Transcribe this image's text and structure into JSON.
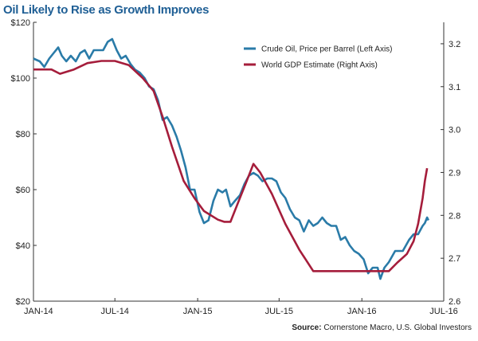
{
  "title": "Oil Likely to Rise as Growth Improves",
  "source_label": "Source:",
  "source_text": "Cornerstone Macro, U.S. Global Investors",
  "chart_data": {
    "type": "line",
    "title": "Oil Likely to Rise as Growth Improves",
    "x_ticks": [
      "JAN-14",
      "JUL-14",
      "JAN-15",
      "JUL-15",
      "JAN-16",
      "JUL-16"
    ],
    "x_range": [
      "2014-01-01",
      "2016-07-01"
    ],
    "y_left": {
      "range": [
        20,
        120
      ],
      "ticks": [
        "$20",
        "$40",
        "$60",
        "$80",
        "$100",
        "$120"
      ]
    },
    "y_right": {
      "range": [
        2.6,
        3.25
      ],
      "ticks": [
        "2.6",
        "2.7",
        "2.8",
        "2.9",
        "3.0",
        "3.1",
        "3.2"
      ]
    },
    "legend_position": "top-right",
    "series": [
      {
        "name": "Crude Oil, Price per Barrel (Left Axis)",
        "axis": "left",
        "color": "#2a7ba8",
        "points": [
          [
            "2014-01-01",
            107
          ],
          [
            "2014-01-15",
            106
          ],
          [
            "2014-01-25",
            104
          ],
          [
            "2014-02-05",
            107
          ],
          [
            "2014-02-15",
            109
          ],
          [
            "2014-02-25",
            111
          ],
          [
            "2014-03-05",
            108
          ],
          [
            "2014-03-15",
            106
          ],
          [
            "2014-03-25",
            108
          ],
          [
            "2014-04-05",
            106
          ],
          [
            "2014-04-15",
            109
          ],
          [
            "2014-04-25",
            110
          ],
          [
            "2014-05-05",
            107
          ],
          [
            "2014-05-15",
            110
          ],
          [
            "2014-05-25",
            110
          ],
          [
            "2014-06-05",
            110
          ],
          [
            "2014-06-15",
            113
          ],
          [
            "2014-06-25",
            114
          ],
          [
            "2014-07-05",
            110
          ],
          [
            "2014-07-15",
            107
          ],
          [
            "2014-07-25",
            108
          ],
          [
            "2014-08-05",
            105
          ],
          [
            "2014-08-15",
            103
          ],
          [
            "2014-08-25",
            102
          ],
          [
            "2014-09-05",
            100
          ],
          [
            "2014-09-15",
            97
          ],
          [
            "2014-09-25",
            96
          ],
          [
            "2014-10-05",
            92
          ],
          [
            "2014-10-15",
            85
          ],
          [
            "2014-10-25",
            86
          ],
          [
            "2014-11-05",
            83
          ],
          [
            "2014-11-15",
            79
          ],
          [
            "2014-11-25",
            74
          ],
          [
            "2014-12-05",
            68
          ],
          [
            "2014-12-15",
            60
          ],
          [
            "2014-12-25",
            60
          ],
          [
            "2015-01-05",
            52
          ],
          [
            "2015-01-15",
            48
          ],
          [
            "2015-01-25",
            49
          ],
          [
            "2015-02-05",
            56
          ],
          [
            "2015-02-15",
            60
          ],
          [
            "2015-02-25",
            59
          ],
          [
            "2015-03-05",
            60
          ],
          [
            "2015-03-15",
            54
          ],
          [
            "2015-03-25",
            56
          ],
          [
            "2015-04-05",
            58
          ],
          [
            "2015-04-15",
            62
          ],
          [
            "2015-04-25",
            65
          ],
          [
            "2015-05-05",
            66
          ],
          [
            "2015-05-15",
            65
          ],
          [
            "2015-05-25",
            63
          ],
          [
            "2015-06-05",
            64
          ],
          [
            "2015-06-15",
            64
          ],
          [
            "2015-06-25",
            63
          ],
          [
            "2015-07-05",
            59
          ],
          [
            "2015-07-15",
            57
          ],
          [
            "2015-07-25",
            53
          ],
          [
            "2015-08-05",
            50
          ],
          [
            "2015-08-15",
            49
          ],
          [
            "2015-08-25",
            45
          ],
          [
            "2015-09-05",
            49
          ],
          [
            "2015-09-15",
            47
          ],
          [
            "2015-09-25",
            48
          ],
          [
            "2015-10-05",
            50
          ],
          [
            "2015-10-15",
            48
          ],
          [
            "2015-10-25",
            47
          ],
          [
            "2015-11-05",
            47
          ],
          [
            "2015-11-15",
            42
          ],
          [
            "2015-11-25",
            43
          ],
          [
            "2015-12-05",
            40
          ],
          [
            "2015-12-15",
            38
          ],
          [
            "2015-12-25",
            37
          ],
          [
            "2016-01-05",
            35
          ],
          [
            "2016-01-15",
            30
          ],
          [
            "2016-01-25",
            32
          ],
          [
            "2016-02-05",
            32
          ],
          [
            "2016-02-11",
            28
          ],
          [
            "2016-02-20",
            32
          ],
          [
            "2016-03-01",
            34
          ],
          [
            "2016-03-15",
            38
          ],
          [
            "2016-04-01",
            38
          ],
          [
            "2016-04-15",
            42
          ],
          [
            "2016-04-25",
            44
          ],
          [
            "2016-05-05",
            44
          ],
          [
            "2016-05-15",
            47
          ],
          [
            "2016-05-20",
            48
          ],
          [
            "2016-05-25",
            50
          ],
          [
            "2016-05-28",
            49
          ]
        ]
      },
      {
        "name": "World GDP Estimate (Right Axis)",
        "axis": "right",
        "color": "#a51d3b",
        "points": [
          [
            "2014-01-01",
            3.14
          ],
          [
            "2014-02-10",
            3.14
          ],
          [
            "2014-03-01",
            3.13
          ],
          [
            "2014-04-01",
            3.14
          ],
          [
            "2014-05-01",
            3.155
          ],
          [
            "2014-06-01",
            3.16
          ],
          [
            "2014-07-01",
            3.16
          ],
          [
            "2014-08-01",
            3.15
          ],
          [
            "2014-09-01",
            3.12
          ],
          [
            "2014-09-25",
            3.09
          ],
          [
            "2014-10-15",
            3.03
          ],
          [
            "2014-11-05",
            2.96
          ],
          [
            "2014-12-01",
            2.88
          ],
          [
            "2014-12-25",
            2.84
          ],
          [
            "2015-01-15",
            2.81
          ],
          [
            "2015-02-15",
            2.79
          ],
          [
            "2015-03-01",
            2.785
          ],
          [
            "2015-03-15",
            2.785
          ],
          [
            "2015-04-01",
            2.83
          ],
          [
            "2015-04-20",
            2.88
          ],
          [
            "2015-05-05",
            2.92
          ],
          [
            "2015-05-20",
            2.9
          ],
          [
            "2015-06-15",
            2.85
          ],
          [
            "2015-07-15",
            2.78
          ],
          [
            "2015-08-15",
            2.72
          ],
          [
            "2015-09-15",
            2.67
          ],
          [
            "2015-10-15",
            2.67
          ],
          [
            "2015-12-01",
            2.67
          ],
          [
            "2016-01-15",
            2.67
          ],
          [
            "2016-02-10",
            2.67
          ],
          [
            "2016-03-01",
            2.67
          ],
          [
            "2016-03-20",
            2.69
          ],
          [
            "2016-04-10",
            2.71
          ],
          [
            "2016-04-25",
            2.74
          ],
          [
            "2016-05-05",
            2.78
          ],
          [
            "2016-05-15",
            2.84
          ],
          [
            "2016-05-20",
            2.88
          ],
          [
            "2016-05-25",
            2.91
          ]
        ]
      }
    ]
  }
}
